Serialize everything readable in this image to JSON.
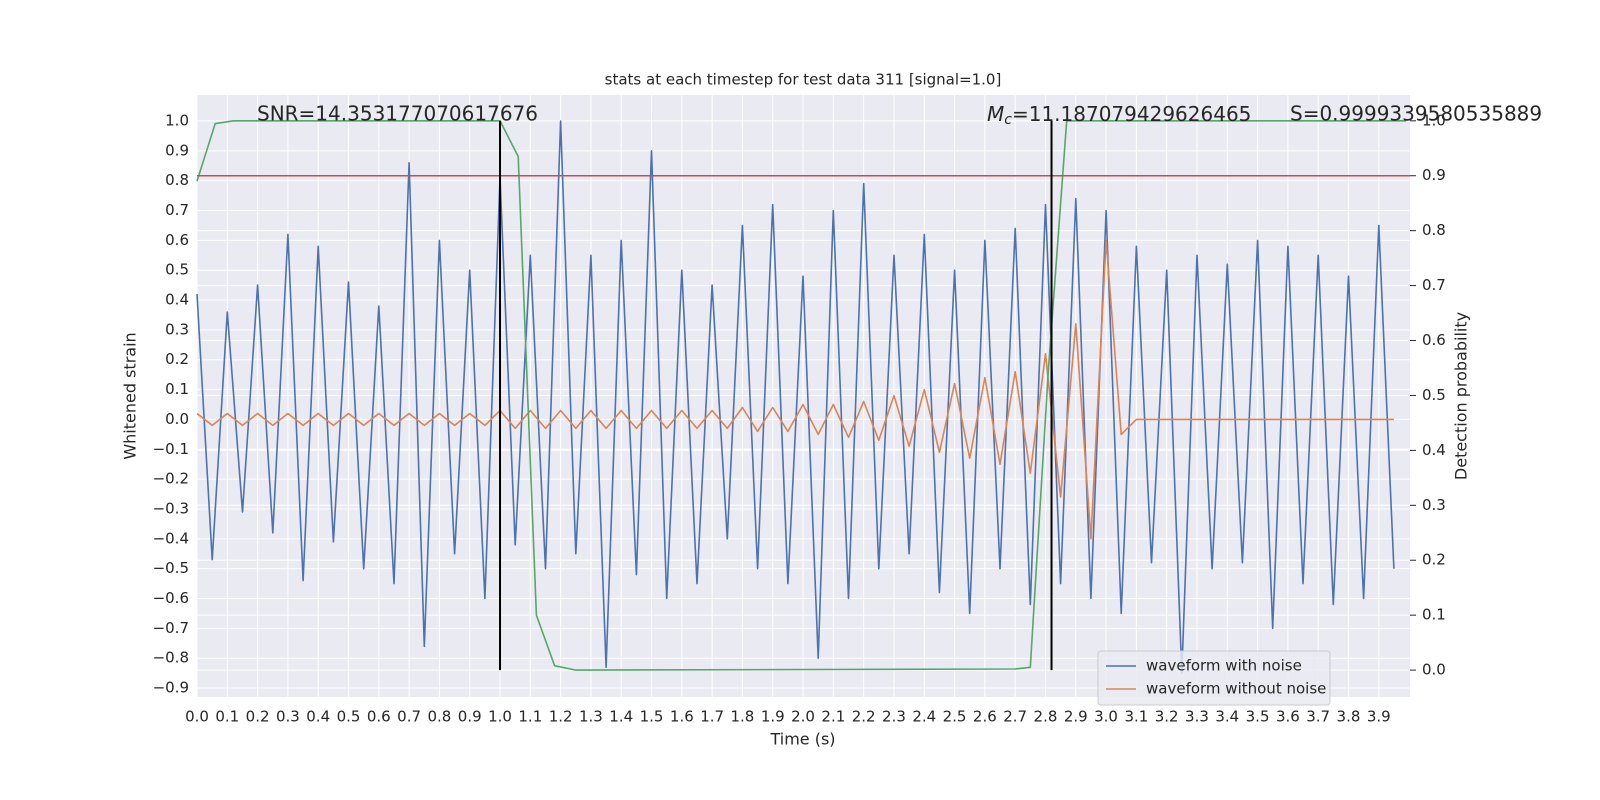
{
  "chart_data": {
    "type": "line",
    "title": "stats at each timestep for test data 311 [signal=1.0]",
    "xlabel": "Time (s)",
    "ylabel": "Whitened strain",
    "y2label": "Detection probability",
    "annotations": {
      "snr": "SNR=14.353177070617676",
      "mc": {
        "symbol": "M",
        "subscript": "c",
        "text": "=11.187079429626465"
      },
      "s": "S=0.9999339580535889"
    },
    "x": [
      0,
      0.05,
      0.1,
      0.15,
      0.2,
      0.25,
      0.3,
      0.35,
      0.4,
      0.45,
      0.5,
      0.55,
      0.6,
      0.65,
      0.7,
      0.75,
      0.8,
      0.85,
      0.9,
      0.95,
      1.0,
      1.05,
      1.1,
      1.15,
      1.2,
      1.25,
      1.3,
      1.35,
      1.4,
      1.45,
      1.5,
      1.55,
      1.6,
      1.65,
      1.7,
      1.75,
      1.8,
      1.85,
      1.9,
      1.95,
      2.0,
      2.05,
      2.1,
      2.15,
      2.2,
      2.25,
      2.3,
      2.35,
      2.4,
      2.45,
      2.5,
      2.55,
      2.6,
      2.65,
      2.7,
      2.75,
      2.8,
      2.85,
      2.9,
      2.95,
      3.0,
      3.05,
      3.1,
      3.15,
      3.2,
      3.25,
      3.3,
      3.35,
      3.4,
      3.45,
      3.5,
      3.55,
      3.6,
      3.65,
      3.7,
      3.75,
      3.8,
      3.85,
      3.9,
      3.95
    ],
    "series": [
      {
        "name": "waveform with noise",
        "color": "#4c72b0",
        "values": [
          0.42,
          -0.47,
          0.36,
          -0.31,
          0.45,
          -0.38,
          0.62,
          -0.54,
          0.58,
          -0.41,
          0.46,
          -0.5,
          0.38,
          -0.55,
          0.86,
          -0.76,
          0.6,
          -0.45,
          0.5,
          -0.6,
          0.81,
          -0.42,
          0.55,
          -0.5,
          1.0,
          -0.45,
          0.55,
          -0.83,
          0.6,
          -0.52,
          0.9,
          -0.6,
          0.5,
          -0.55,
          0.45,
          -0.4,
          0.65,
          -0.5,
          0.72,
          -0.55,
          0.48,
          -0.8,
          0.7,
          -0.6,
          0.79,
          -0.5,
          0.55,
          -0.45,
          0.62,
          -0.58,
          0.5,
          -0.65,
          0.6,
          -0.5,
          0.64,
          -0.62,
          0.72,
          -0.55,
          0.74,
          -0.6,
          0.7,
          -0.65,
          0.58,
          -0.48,
          0.5,
          -0.85,
          0.55,
          -0.5,
          0.52,
          -0.48,
          0.6,
          -0.7,
          0.58,
          -0.55,
          0.55,
          -0.62,
          0.48,
          -0.6,
          0.65,
          -0.5
        ]
      },
      {
        "name": "waveform without noise",
        "color": "#dd8452",
        "values": [
          0.02,
          -0.02,
          0.02,
          -0.02,
          0.02,
          -0.02,
          0.02,
          -0.02,
          0.02,
          -0.02,
          0.02,
          -0.02,
          0.02,
          -0.02,
          0.02,
          -0.02,
          0.02,
          -0.02,
          0.02,
          -0.02,
          0.03,
          -0.03,
          0.03,
          -0.03,
          0.03,
          -0.03,
          0.03,
          -0.03,
          0.03,
          -0.03,
          0.03,
          -0.03,
          0.03,
          -0.03,
          0.03,
          -0.03,
          0.04,
          -0.04,
          0.04,
          -0.04,
          0.05,
          -0.05,
          0.05,
          -0.06,
          0.06,
          -0.07,
          0.08,
          -0.09,
          0.1,
          -0.11,
          0.12,
          -0.13,
          0.14,
          -0.15,
          0.16,
          -0.18,
          0.22,
          -0.26,
          0.32,
          -0.4,
          0.6,
          -0.05,
          0,
          0,
          0,
          0,
          0,
          0,
          0,
          0,
          0,
          0,
          0,
          0,
          0,
          0,
          0,
          0,
          0,
          0
        ]
      },
      {
        "color": "#55a868",
        "axis": "y2",
        "x": [
          0,
          0.06,
          0.12,
          1.0,
          1.06,
          1.12,
          1.18,
          1.25,
          2.7,
          2.75,
          2.81,
          2.87,
          3.99
        ],
        "values": [
          0.89,
          0.995,
          1.0,
          1.0,
          0.935,
          0.1,
          0.008,
          0.0,
          0.002,
          0.005,
          0.55,
          1.0,
          1.0
        ]
      }
    ],
    "threshold": 0.9,
    "threshold_color": "#c44e52",
    "vlines": [
      1.0,
      2.82
    ],
    "vline_color": "#000000",
    "xlim": [
      0,
      4.003
    ],
    "ylim": [
      -0.93,
      1.087
    ],
    "y2lim": [
      -0.049,
      1.047
    ],
    "xticks": [
      {
        "value": 0,
        "label": "0.0"
      },
      {
        "value": 0.1,
        "label": "0.1"
      },
      {
        "value": 0.2,
        "label": "0.2"
      },
      {
        "value": 0.3,
        "label": "0.3"
      },
      {
        "value": 0.4,
        "label": "0.4"
      },
      {
        "value": 0.5,
        "label": "0.5"
      },
      {
        "value": 0.6,
        "label": "0.6"
      },
      {
        "value": 0.7,
        "label": "0.7"
      },
      {
        "value": 0.8,
        "label": "0.8"
      },
      {
        "value": 0.9,
        "label": "0.9"
      },
      {
        "value": 1,
        "label": "1.0"
      },
      {
        "value": 1.1,
        "label": "1.1"
      },
      {
        "value": 1.2,
        "label": "1.2"
      },
      {
        "value": 1.3,
        "label": "1.3"
      },
      {
        "value": 1.4,
        "label": "1.4"
      },
      {
        "value": 1.5,
        "label": "1.5"
      },
      {
        "value": 1.6,
        "label": "1.6"
      },
      {
        "value": 1.7,
        "label": "1.7"
      },
      {
        "value": 1.8,
        "label": "1.8"
      },
      {
        "value": 1.9,
        "label": "1.9"
      },
      {
        "value": 2,
        "label": "2.0"
      },
      {
        "value": 2.1,
        "label": "2.1"
      },
      {
        "value": 2.2,
        "label": "2.2"
      },
      {
        "value": 2.3,
        "label": "2.3"
      },
      {
        "value": 2.4,
        "label": "2.4"
      },
      {
        "value": 2.5,
        "label": "2.5"
      },
      {
        "value": 2.6,
        "label": "2.6"
      },
      {
        "value": 2.7,
        "label": "2.7"
      },
      {
        "value": 2.8,
        "label": "2.8"
      },
      {
        "value": 2.9,
        "label": "2.9"
      },
      {
        "value": 3,
        "label": "3.0"
      },
      {
        "value": 3.1,
        "label": "3.1"
      },
      {
        "value": 3.2,
        "label": "3.2"
      },
      {
        "value": 3.3,
        "label": "3.3"
      },
      {
        "value": 3.4,
        "label": "3.4"
      },
      {
        "value": 3.5,
        "label": "3.5"
      },
      {
        "value": 3.6,
        "label": "3.6"
      },
      {
        "value": 3.7,
        "label": "3.7"
      },
      {
        "value": 3.8,
        "label": "3.8"
      },
      {
        "value": 3.9,
        "label": "3.9"
      }
    ],
    "yticks": [
      {
        "value": -0.9,
        "label": "−0.9"
      },
      {
        "value": -0.8,
        "label": "−0.8"
      },
      {
        "value": -0.7,
        "label": "−0.7"
      },
      {
        "value": -0.6,
        "label": "−0.6"
      },
      {
        "value": -0.5,
        "label": "−0.5"
      },
      {
        "value": -0.4,
        "label": "−0.4"
      },
      {
        "value": -0.3,
        "label": "−0.3"
      },
      {
        "value": -0.2,
        "label": "−0.2"
      },
      {
        "value": -0.1,
        "label": "−0.1"
      },
      {
        "value": 0,
        "label": "0.0"
      },
      {
        "value": 0.1,
        "label": "0.1"
      },
      {
        "value": 0.2,
        "label": "0.2"
      },
      {
        "value": 0.3,
        "label": "0.3"
      },
      {
        "value": 0.4,
        "label": "0.4"
      },
      {
        "value": 0.5,
        "label": "0.5"
      },
      {
        "value": 0.6,
        "label": "0.6"
      },
      {
        "value": 0.7,
        "label": "0.7"
      },
      {
        "value": 0.8,
        "label": "0.8"
      },
      {
        "value": 0.9,
        "label": "0.9"
      },
      {
        "value": 1,
        "label": "1.0"
      }
    ],
    "y2ticks": [
      {
        "value": 0,
        "label": "0.0"
      },
      {
        "value": 0.1,
        "label": "0.1"
      },
      {
        "value": 0.2,
        "label": "0.2"
      },
      {
        "value": 0.3,
        "label": "0.3"
      },
      {
        "value": 0.4,
        "label": "0.4"
      },
      {
        "value": 0.5,
        "label": "0.5"
      },
      {
        "value": 0.6,
        "label": "0.6"
      },
      {
        "value": 0.7,
        "label": "0.7"
      },
      {
        "value": 0.8,
        "label": "0.8"
      },
      {
        "value": 0.9,
        "label": "0.9"
      },
      {
        "value": 1,
        "label": "1.0"
      }
    ],
    "grid": true,
    "legend": "lower right"
  }
}
